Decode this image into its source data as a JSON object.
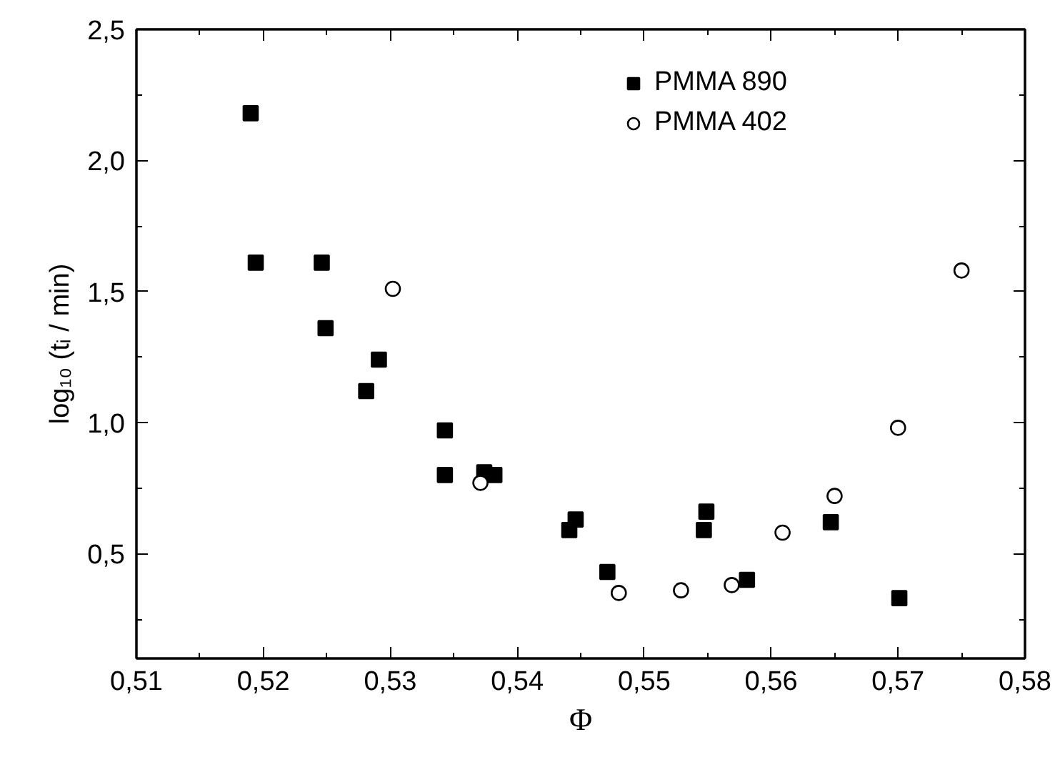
{
  "chart_data": {
    "type": "scatter",
    "xlabel": "Φ",
    "ylabel": "log₁₀ (tᵢ / min)",
    "xlim": [
      0.51,
      0.58
    ],
    "ylim": [
      0.1,
      2.5
    ],
    "xticks": [
      {
        "value": 0.51,
        "label": "0,51"
      },
      {
        "value": 0.515,
        "label": null
      },
      {
        "value": 0.52,
        "label": "0,52"
      },
      {
        "value": 0.525,
        "label": null
      },
      {
        "value": 0.53,
        "label": "0,53"
      },
      {
        "value": 0.535,
        "label": null
      },
      {
        "value": 0.54,
        "label": "0,54"
      },
      {
        "value": 0.545,
        "label": null
      },
      {
        "value": 0.55,
        "label": "0,55"
      },
      {
        "value": 0.555,
        "label": null
      },
      {
        "value": 0.56,
        "label": "0,56"
      },
      {
        "value": 0.565,
        "label": null
      },
      {
        "value": 0.57,
        "label": "0,57"
      },
      {
        "value": 0.575,
        "label": null
      },
      {
        "value": 0.58,
        "label": "0,58"
      }
    ],
    "yticks": [
      {
        "value": 0.25,
        "label": null
      },
      {
        "value": 0.5,
        "label": "0,5"
      },
      {
        "value": 0.75,
        "label": null
      },
      {
        "value": 1.0,
        "label": "1,0"
      },
      {
        "value": 1.25,
        "label": null
      },
      {
        "value": 1.5,
        "label": "1,5"
      },
      {
        "value": 1.75,
        "label": null
      },
      {
        "value": 2.0,
        "label": "2,0"
      },
      {
        "value": 2.25,
        "label": null
      },
      {
        "value": 2.5,
        "label": "2,5"
      }
    ],
    "grid": false,
    "legend": "top right",
    "series": [
      {
        "name": "PMMA 890",
        "color": "#000000",
        "marker": "square",
        "x": [
          0.519,
          0.5194,
          0.5246,
          0.5249,
          0.5291,
          0.5281,
          0.5343,
          0.5343,
          0.5374,
          0.5382,
          0.5441,
          0.5446,
          0.5471,
          0.5549,
          0.5547,
          0.5581,
          0.5647,
          0.5701
        ],
        "values": [
          2.18,
          1.61,
          1.61,
          1.36,
          1.24,
          1.12,
          0.97,
          0.8,
          0.81,
          0.8,
          0.59,
          0.63,
          0.43,
          0.66,
          0.59,
          0.4,
          0.62,
          0.33
        ]
      },
      {
        "name": "PMMA 402",
        "color": "#000000",
        "marker": "circle",
        "x": [
          0.5302,
          0.5371,
          0.548,
          0.5529,
          0.5569,
          0.5609,
          0.565,
          0.57,
          0.575
        ],
        "values": [
          1.51,
          0.77,
          0.35,
          0.36,
          0.38,
          0.58,
          0.72,
          0.98,
          1.58
        ]
      }
    ]
  }
}
